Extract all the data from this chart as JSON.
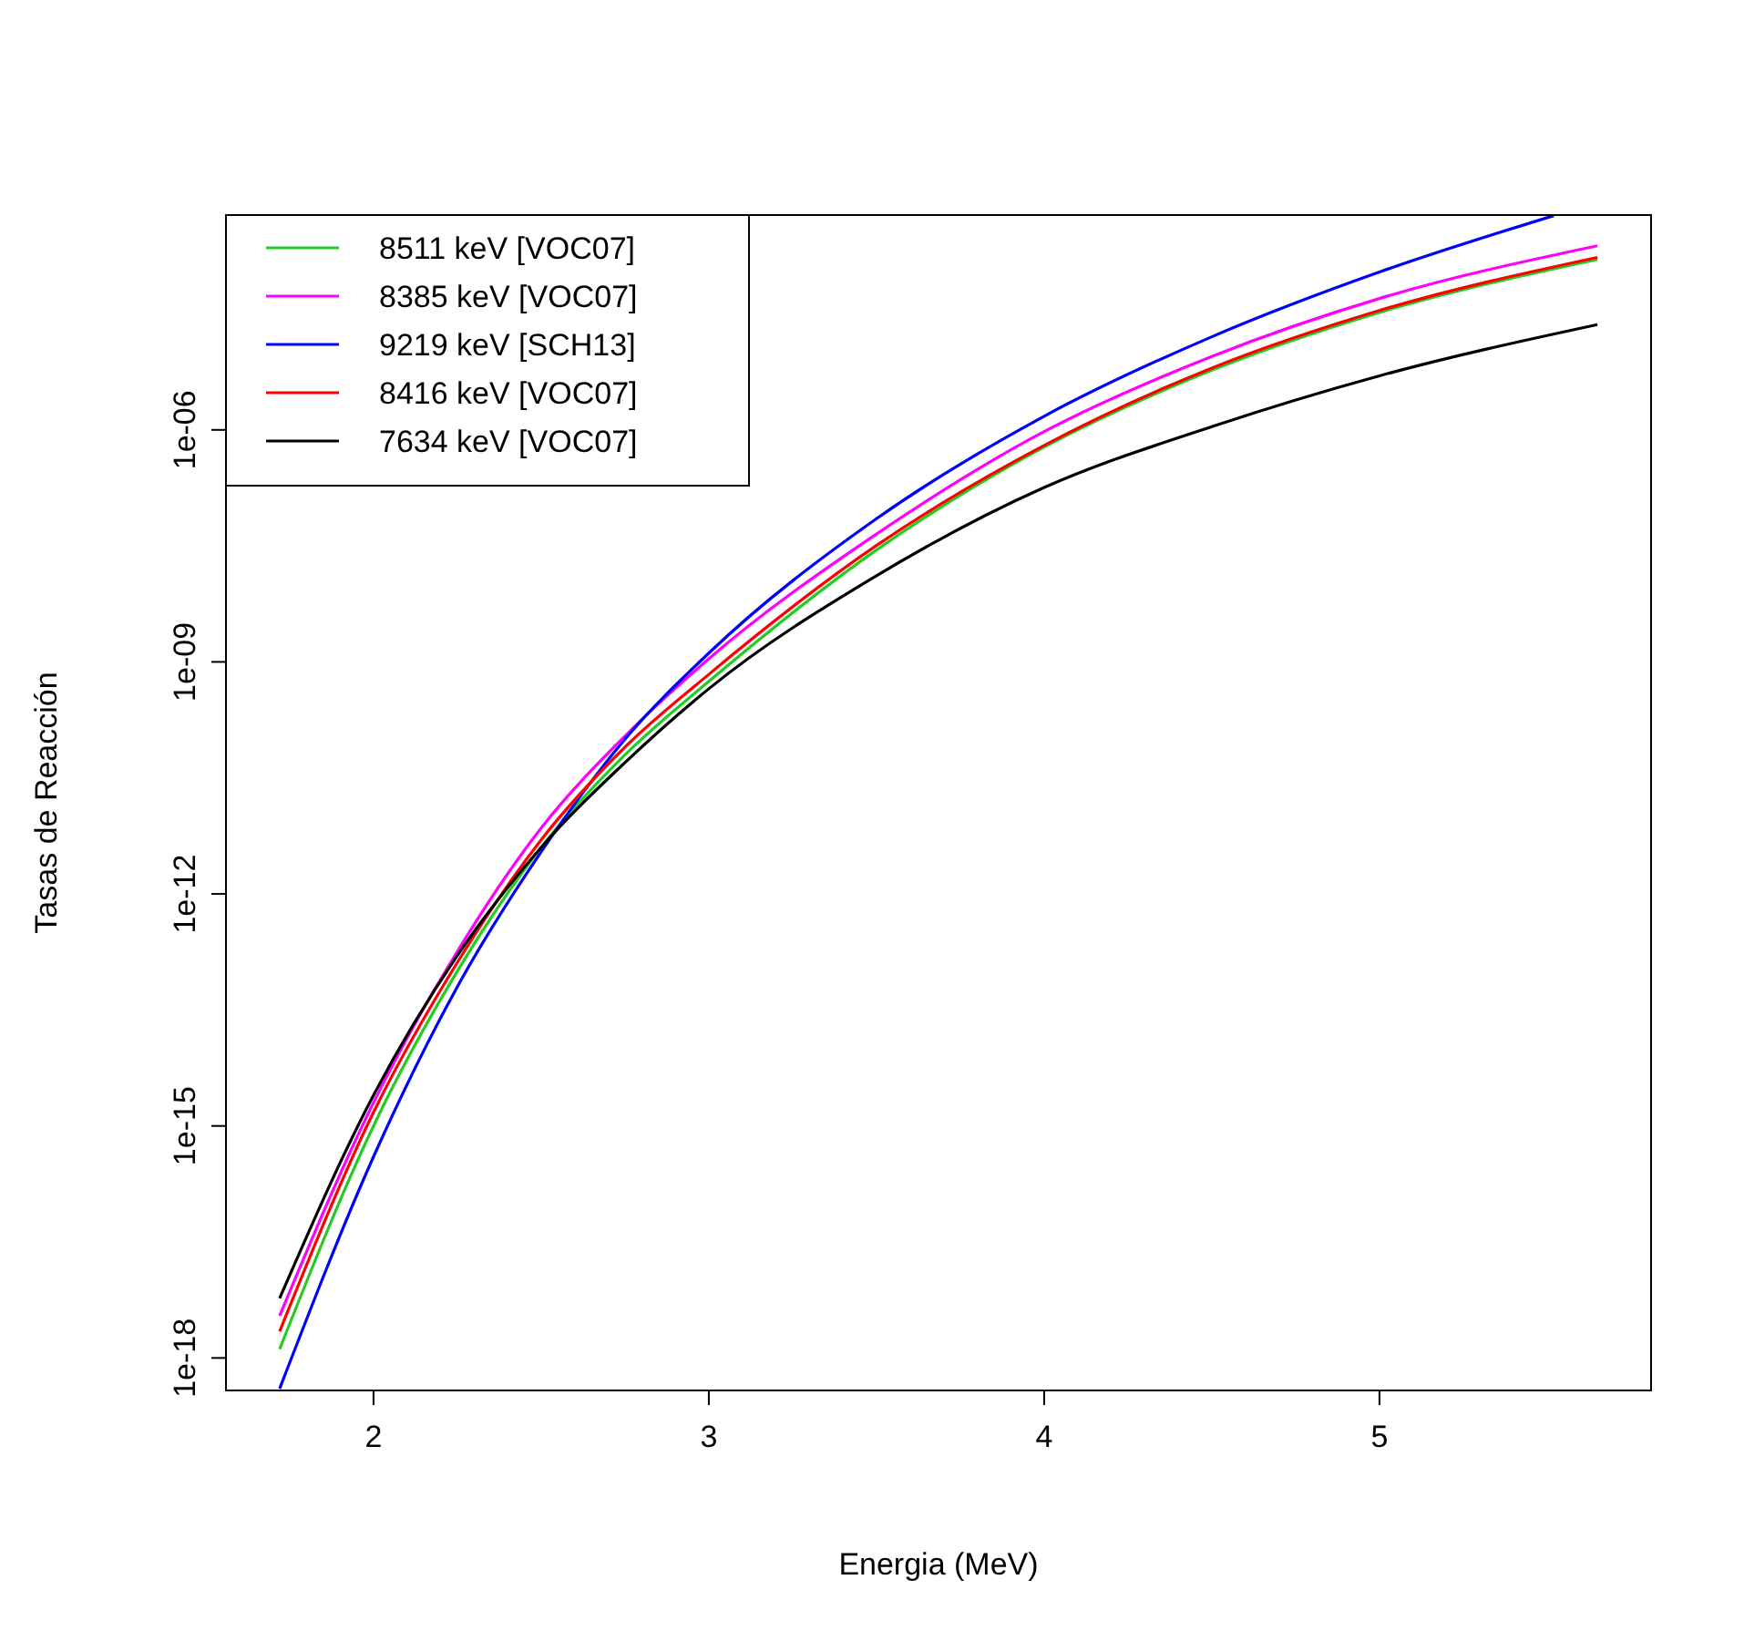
{
  "chart_data": {
    "type": "line",
    "xlabel": "Energia (MeV)",
    "ylabel": "Tasas de Reacción",
    "log": "y",
    "legend": "top left",
    "line_style": "solid",
    "marker": "none",
    "xlim": [
      1.56,
      5.81
    ],
    "xticks": [
      2,
      3,
      4,
      5
    ],
    "ylim": [
      3.8e-19,
      0.0006
    ],
    "yticks": [
      {
        "value": 1e-18,
        "label": "1e-18"
      },
      {
        "value": 1e-15,
        "label": "1e-15"
      },
      {
        "value": 1e-12,
        "label": "1e-12"
      },
      {
        "value": 1e-09,
        "label": "1e-09"
      },
      {
        "value": 1e-06,
        "label": "1e-06"
      }
    ],
    "series": [
      {
        "name": "8511 keV [VOC07]",
        "color": "#22cc22",
        "x": [
          1.72,
          2,
          2.25,
          2.5,
          2.75,
          3,
          3.5,
          4,
          4.5,
          5,
          5.65
        ],
        "values": [
          1.3e-18,
          1e-15,
          1e-13,
          4e-12,
          6.3e-11,
          5.6e-10,
          2.8e-08,
          6e-07,
          5.9e-06,
          3.3e-05,
          0.00016
        ]
      },
      {
        "name": "8385 keV [VOC07]",
        "color": "#ff00ff",
        "x": [
          1.72,
          2,
          2.25,
          2.5,
          2.75,
          3,
          3.5,
          4,
          4.5,
          5,
          5.65
        ],
        "values": [
          3.5e-18,
          2e-15,
          1.8e-13,
          7.1e-12,
          1.1e-10,
          1.1e-09,
          4.5e-08,
          9.5e-07,
          8.9e-06,
          5e-05,
          0.00024
        ]
      },
      {
        "name": "9219 keV [SCH13]",
        "color": "#0000ff",
        "x": [
          1.72,
          2,
          2.25,
          2.5,
          2.75,
          3,
          3.5,
          4,
          4.5,
          5,
          5.52
        ],
        "values": [
          4e-19,
          4e-16,
          6.3e-14,
          3.5e-12,
          1e-10,
          1.3e-09,
          7.1e-08,
          1.5e-06,
          1.6e-05,
          0.00011,
          0.00059
        ]
      },
      {
        "name": "8416 keV [VOC07]",
        "color": "#ff0000",
        "x": [
          1.72,
          2,
          2.25,
          2.5,
          2.75,
          3,
          3.5,
          4,
          4.5,
          5,
          5.65
        ],
        "values": [
          2.2e-18,
          1.5e-15,
          1.3e-13,
          5e-12,
          7.9e-11,
          6.9e-10,
          3.2e-08,
          6.3e-07,
          6.3e-06,
          3.5e-05,
          0.00017
        ]
      },
      {
        "name": "7634 keV [VOC07]",
        "color": "#000000",
        "x": [
          1.72,
          2,
          2.25,
          2.5,
          2.75,
          3,
          3.5,
          4,
          4.5,
          5,
          5.65
        ],
        "values": [
          5.9e-18,
          2.5e-15,
          1.6e-13,
          4e-12,
          5e-11,
          4.5e-10,
          1.3e-08,
          1.8e-07,
          1.1e-06,
          5e-06,
          2.3e-05
        ]
      }
    ]
  }
}
